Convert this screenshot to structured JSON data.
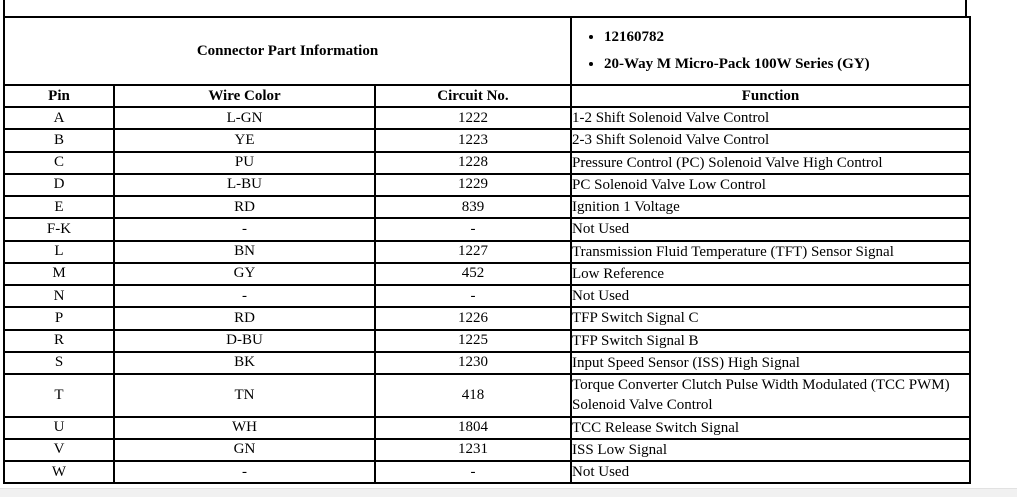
{
  "table": {
    "part_info_label": "Connector Part Information",
    "part_numbers": [
      "12160782",
      "20-Way M Micro-Pack 100W Series (GY)"
    ],
    "columns": [
      "Pin",
      "Wire Color",
      "Circuit No.",
      "Function"
    ],
    "rows": [
      {
        "pin": "A",
        "wire_color": "L-GN",
        "circuit": "1222",
        "function": "1-2 Shift Solenoid Valve Control"
      },
      {
        "pin": "B",
        "wire_color": "YE",
        "circuit": "1223",
        "function": "2-3 Shift Solenoid Valve Control"
      },
      {
        "pin": "C",
        "wire_color": "PU",
        "circuit": "1228",
        "function": "Pressure Control (PC) Solenoid Valve High Control"
      },
      {
        "pin": "D",
        "wire_color": "L-BU",
        "circuit": "1229",
        "function": "PC Solenoid Valve Low Control"
      },
      {
        "pin": "E",
        "wire_color": "RD",
        "circuit": "839",
        "function": "Ignition 1 Voltage"
      },
      {
        "pin": "F-K",
        "wire_color": "-",
        "circuit": "-",
        "function": "Not Used"
      },
      {
        "pin": "L",
        "wire_color": "BN",
        "circuit": "1227",
        "function": "Transmission Fluid Temperature (TFT) Sensor Signal"
      },
      {
        "pin": "M",
        "wire_color": "GY",
        "circuit": "452",
        "function": "Low Reference"
      },
      {
        "pin": "N",
        "wire_color": "-",
        "circuit": "-",
        "function": "Not Used"
      },
      {
        "pin": "P",
        "wire_color": "RD",
        "circuit": "1226",
        "function": "TFP Switch Signal C"
      },
      {
        "pin": "R",
        "wire_color": "D-BU",
        "circuit": "1225",
        "function": "TFP Switch Signal B"
      },
      {
        "pin": "S",
        "wire_color": "BK",
        "circuit": "1230",
        "function": "Input Speed Sensor (ISS) High Signal"
      },
      {
        "pin": "T",
        "wire_color": "TN",
        "circuit": "418",
        "function": "Torque Converter Clutch Pulse Width Modulated (TCC PWM) Solenoid Valve Control"
      },
      {
        "pin": "U",
        "wire_color": "WH",
        "circuit": "1804",
        "function": "TCC Release Switch Signal"
      },
      {
        "pin": "V",
        "wire_color": "GN",
        "circuit": "1231",
        "function": "ISS Low Signal"
      },
      {
        "pin": "W",
        "wire_color": "-",
        "circuit": "-",
        "function": "Not Used"
      }
    ]
  },
  "colors": {
    "border": "#000000",
    "text": "#000000",
    "scrollbar_track": "#f1f1f1",
    "scrollbar_edge": "#e2e2e2"
  }
}
